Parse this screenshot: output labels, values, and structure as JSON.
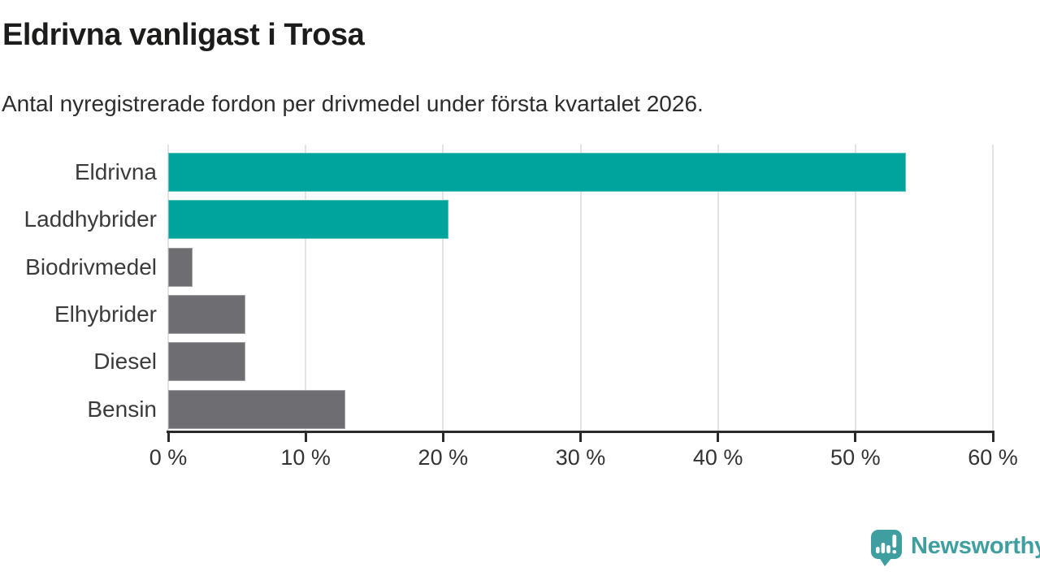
{
  "header": {
    "title": "Eldrivna vanligast i Trosa",
    "subtitle": "Antal nyregistrerade fordon per drivmedel under första kvartalet 2026."
  },
  "chart_data": {
    "type": "bar",
    "orientation": "horizontal",
    "title": "Eldrivna vanligast i Trosa",
    "subtitle": "Antal nyregistrerade fordon per drivmedel under första kvartalet 2026.",
    "categories": [
      "Eldrivna",
      "Laddhybrider",
      "Biodrivmedel",
      "Elhybrider",
      "Diesel",
      "Bensin"
    ],
    "values": [
      53.7,
      20.4,
      1.8,
      5.6,
      5.6,
      12.9
    ],
    "unit": "%",
    "xlim": [
      0,
      60
    ],
    "x_tick_step": 10,
    "x_tick_labels": [
      "0 %",
      "10 %",
      "20 %",
      "30 %",
      "40 %",
      "50 %",
      "60 %"
    ],
    "bar_colors": [
      "#00a49c",
      "#00a49c",
      "#6d6d72",
      "#6d6d72",
      "#6d6d72",
      "#6d6d72"
    ],
    "grid": true,
    "legend": "none"
  },
  "colors": {
    "accent_teal": "#00a49c",
    "neutral_gray": "#6d6d72",
    "gridline": "#e3e3e3",
    "axis": "#2b2b2b",
    "logo_teal": "#3f9ea0"
  },
  "footer": {
    "brand": "Newsworthy"
  }
}
